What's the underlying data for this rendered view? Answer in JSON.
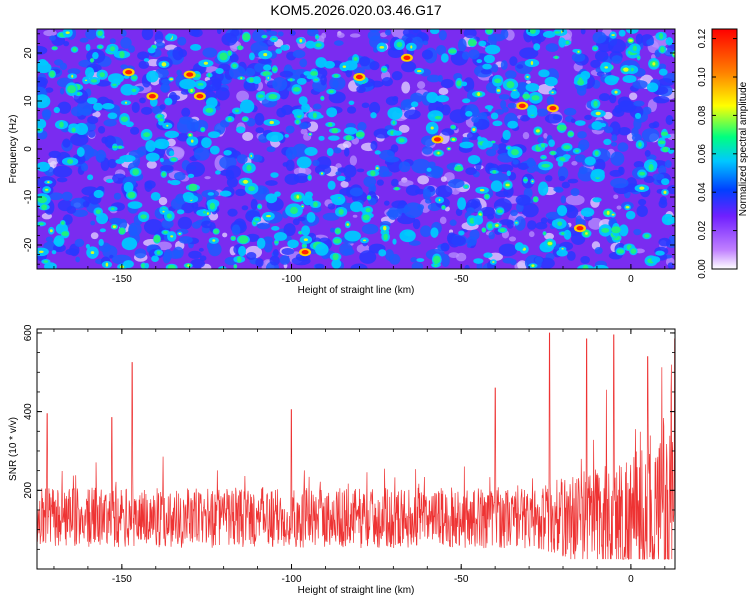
{
  "title": "KOM5.2026.020.03.46.G17",
  "chart_data": [
    {
      "type": "heatmap",
      "xlabel": "Height of straight line (km)",
      "ylabel": "Frequency (Hz)",
      "xlim": [
        -175,
        13
      ],
      "ylim": [
        -25,
        25
      ],
      "xticks": [
        -150,
        -100,
        -50,
        0
      ],
      "yticks": [
        -20,
        -10,
        0,
        10,
        20
      ],
      "colorbar": {
        "label": "Normalized spectral amplitude",
        "range": [
          0.0,
          0.125
        ],
        "ticks": [
          "0.00",
          "0.02",
          "0.04",
          "0.06",
          "0.08",
          "0.10",
          "0.12"
        ],
        "colormap": "rainbow"
      },
      "grid": false,
      "description": "noise-like spectrogram, mostly blue/purple with scattered green/yellow blobs and rare red peaks"
    },
    {
      "type": "line",
      "xlabel": "Height of straight line (km)",
      "ylabel": "SNR (10 * v/v)",
      "xlim": [
        -175,
        13
      ],
      "ylim": [
        0,
        610
      ],
      "xticks": [
        -150,
        -100,
        -50,
        0
      ],
      "yticks": [
        200,
        400,
        600
      ],
      "color": "#ee3333",
      "grid": false,
      "peaks": [
        {
          "x": -172,
          "y": 395
        },
        {
          "x": -153,
          "y": 385
        },
        {
          "x": -147,
          "y": 525
        },
        {
          "x": -100,
          "y": 405
        },
        {
          "x": -40,
          "y": 460
        },
        {
          "x": -24,
          "y": 600
        },
        {
          "x": -13,
          "y": 585
        },
        {
          "x": -5,
          "y": 595
        },
        {
          "x": 5,
          "y": 540
        },
        {
          "x": 13,
          "y": 585
        }
      ]
    }
  ]
}
